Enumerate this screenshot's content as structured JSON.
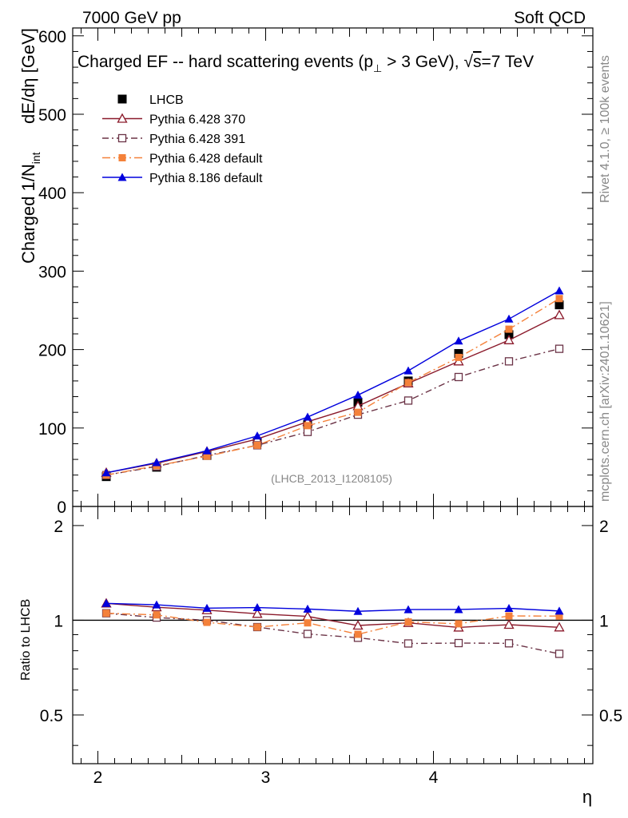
{
  "header": {
    "left_label": "7000 GeV pp",
    "right_label": "Soft QCD"
  },
  "side_labels": {
    "rivet": "Rivet 4.1.0, ≥ 100k events",
    "mcplots": "mcplots.cern.ch [arXiv:2401.10621]"
  },
  "chart_data": {
    "type": "line",
    "title": "Charged EF -- hard scattering events (p⊥ > 3 GeV), √s=7 TeV",
    "title_parts": {
      "pre": "Charged EF -- hard scattering events (p",
      "sub": "⊥",
      "mid": " > 3 GeV), ",
      "sqrt": "√",
      "s": "s",
      "post": "=7 TeV"
    },
    "ylabel": "Charged 1/N",
    "ylabel_sub": "int",
    "ylabel_right": "dE/dη [GeV]",
    "xlabel": "η",
    "xlim": [
      1.85,
      4.95
    ],
    "ylim": [
      0,
      610
    ],
    "x_ticks": [
      2,
      3,
      4
    ],
    "y_ticks": [
      0,
      100,
      200,
      300,
      400,
      500,
      600
    ],
    "ratio_label": "Ratio to LHCB",
    "ratio_ylim": [
      0.35,
      2.3
    ],
    "ratio_ticks": [
      0.5,
      1,
      2
    ],
    "watermark": "(LHCB_2013_I1208105)",
    "x": [
      2.05,
      2.35,
      2.65,
      2.95,
      3.25,
      3.55,
      3.85,
      4.15,
      4.45,
      4.75
    ],
    "series": [
      {
        "name": "LHCB",
        "color": "#000000",
        "marker": "square-filled",
        "dash": "none",
        "values": [
          38,
          50,
          65,
          82,
          105,
          133,
          160,
          195,
          219,
          257
        ]
      },
      {
        "name": "Pythia 6.428 370",
        "color": "#8b1a2b",
        "marker": "triangle-open",
        "dash": "solid",
        "values": [
          43,
          55,
          70,
          86,
          108,
          128,
          157,
          185,
          212,
          244
        ]
      },
      {
        "name": "Pythia 6.428 391",
        "color": "#6b3346",
        "marker": "square-open",
        "dash": "dashdot",
        "values": [
          40,
          51,
          65,
          78,
          95,
          117,
          135,
          165,
          185,
          201
        ]
      },
      {
        "name": "Pythia 6.428 default",
        "color": "#f4813a",
        "marker": "square-filled",
        "dash": "dashdot-long",
        "values": [
          40,
          52,
          64,
          78,
          103,
          120,
          158,
          190,
          226,
          265
        ]
      },
      {
        "name": "Pythia 8.186 default",
        "color": "#0000dd",
        "marker": "triangle-filled",
        "dash": "solid",
        "values": [
          43,
          56,
          71,
          90,
          114,
          142,
          173,
          211,
          239,
          275
        ]
      }
    ]
  }
}
